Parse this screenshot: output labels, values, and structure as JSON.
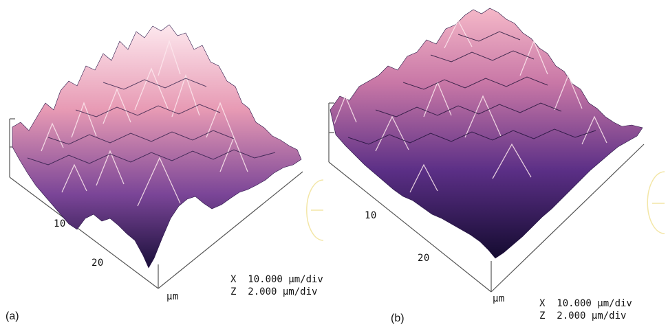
{
  "panels": [
    {
      "label": "(a)",
      "axis_ticks": [
        "10",
        "20"
      ],
      "axis_unit": "μm",
      "scale": {
        "x_line": "X  10.000 μm/div",
        "z_line": "Z  2.000 μm/div"
      }
    },
    {
      "label": "(b)",
      "axis_ticks": [
        "10",
        "20"
      ],
      "axis_unit": "μm",
      "scale": {
        "x_line": "X  10.000 μm/div",
        "z_line": "Z  2.000 μm/div"
      }
    }
  ],
  "colors": {
    "dark": "#1a0f3a",
    "mid": "#6b3d8f",
    "light": "#f2a5b8",
    "highlight": "#fde8ee",
    "axis": "#555555",
    "arc": "#f3e6a6"
  }
}
